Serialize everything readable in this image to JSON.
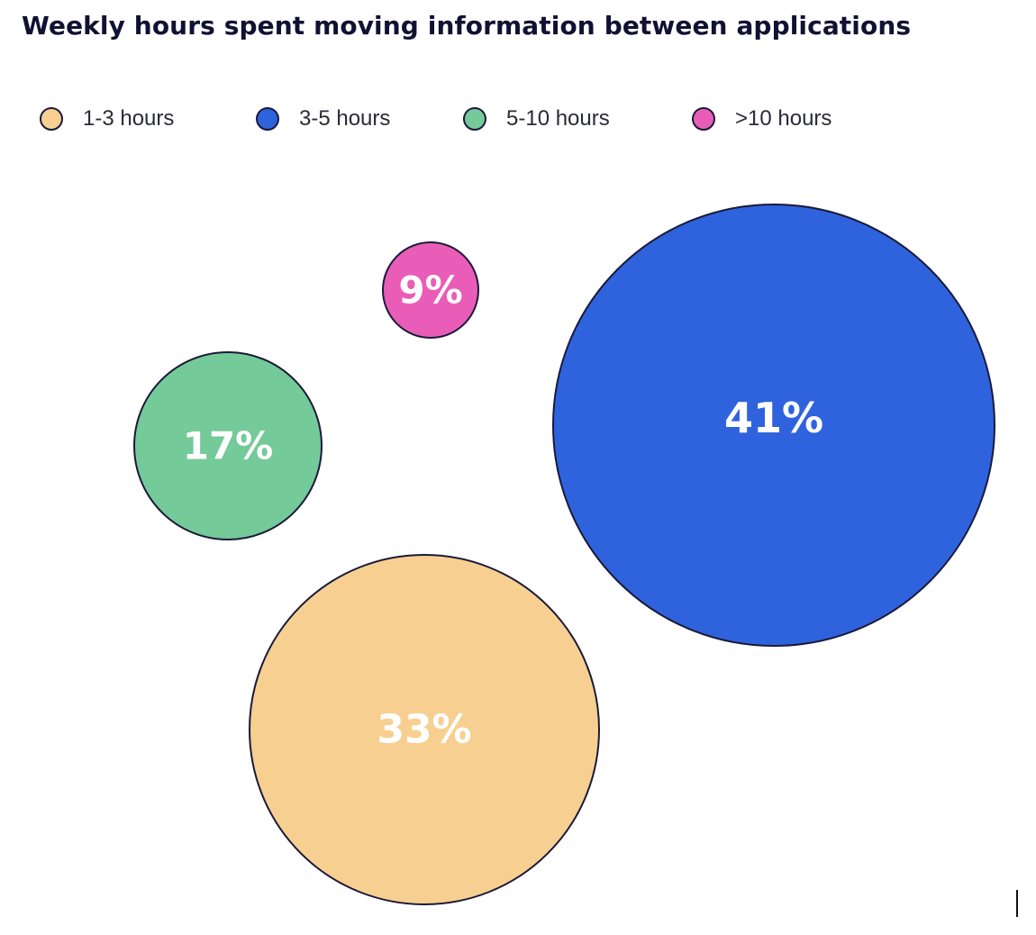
{
  "chart_data": {
    "type": "bubble",
    "title": "Weekly hours spent moving information between applications",
    "legend_position": "top-left",
    "series": [
      {
        "name": "1-3 hours",
        "value": 33,
        "label": "33%",
        "color": "#F7D091"
      },
      {
        "name": "3-5 hours",
        "value": 41,
        "label": "41%",
        "color": "#2F63DD"
      },
      {
        "name": "5-10 hours",
        "value": 17,
        "label": "17%",
        "color": "#74CA99"
      },
      {
        "name": ">10 hours",
        "value": 9,
        "label": "9%",
        "color": "#E95DB8"
      }
    ],
    "outline_color": "#1a1a3a"
  }
}
